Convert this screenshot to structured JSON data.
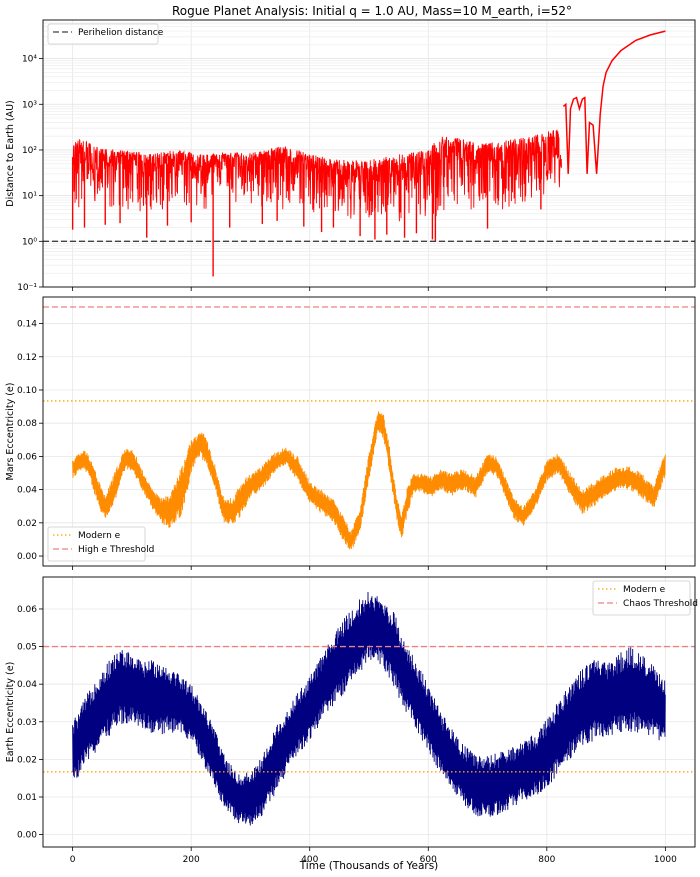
{
  "figure": {
    "title": "Rogue Planet Analysis: Initial q = 1.0 AU, Mass=10 M_earth, i=52°",
    "xlabel": "Time (Thousands of Years)"
  },
  "chart_data": [
    {
      "type": "line",
      "id": "distance",
      "ylabel": "Distance to Earth (AU)",
      "yscale": "log",
      "ylim": [
        0.1,
        70000
      ],
      "xlim": [
        -50,
        1050
      ],
      "xticks": [
        0,
        200,
        400,
        600,
        800,
        1000
      ],
      "yticks": [
        0.1,
        1,
        10,
        100,
        1000,
        10000
      ],
      "ytick_labels": [
        "10⁻¹",
        "10⁰",
        "10¹",
        "10²",
        "10³",
        "10⁴"
      ],
      "grid": true,
      "legend_position": "upper-left",
      "series": [
        {
          "kind": "band",
          "color": "#ff0000",
          "x": [
            0,
            25,
            50,
            75,
            100,
            125,
            150,
            175,
            200,
            225,
            250,
            275,
            300,
            325,
            350,
            375,
            400,
            425,
            450,
            475,
            500,
            525,
            550,
            575,
            600,
            625,
            650,
            675,
            700,
            725,
            750,
            775,
            800,
            825
          ],
          "low": [
            5,
            6,
            6,
            5,
            5,
            4,
            5,
            5,
            6,
            5,
            6,
            5,
            5,
            6,
            5,
            5,
            4,
            4,
            3,
            3,
            3,
            3,
            2.5,
            3,
            3,
            4,
            5,
            5,
            5,
            5,
            6,
            7,
            10,
            12
          ],
          "high": [
            180,
            150,
            110,
            100,
            95,
            80,
            90,
            100,
            90,
            80,
            90,
            90,
            85,
            100,
            120,
            110,
            80,
            70,
            65,
            60,
            60,
            70,
            80,
            90,
            110,
            200,
            190,
            150,
            140,
            160,
            180,
            200,
            250,
            300
          ],
          "mid": [
            70,
            60,
            55,
            50,
            50,
            45,
            50,
            50,
            45,
            40,
            45,
            45,
            45,
            50,
            55,
            55,
            45,
            35,
            30,
            28,
            28,
            30,
            35,
            40,
            45,
            70,
            75,
            65,
            60,
            65,
            70,
            80,
            100,
            120
          ]
        },
        {
          "kind": "spikes",
          "color": "#ff0000",
          "x": [
            0,
            20,
            55,
            80,
            125,
            160,
            200,
            237,
            265,
            320,
            345,
            390,
            420,
            440,
            485,
            510,
            530,
            560,
            580,
            607,
            612,
            700,
            790
          ],
          "y": [
            1.8,
            2.0,
            2.3,
            2.5,
            1.2,
            2.2,
            2.6,
            0.17,
            2.0,
            2.4,
            2.8,
            2.1,
            1.6,
            2.0,
            1.3,
            1.1,
            1.4,
            1.2,
            1.5,
            1.1,
            1.0,
            1.9,
            5
          ]
        },
        {
          "kind": "escape",
          "color": "#ff0000",
          "x": [
            828,
            832,
            836,
            840,
            845,
            850,
            855,
            860,
            864,
            868,
            872,
            878,
            884,
            889,
            890,
            895,
            900,
            910,
            925,
            950,
            975,
            1000
          ],
          "y": [
            900,
            1000,
            30,
            800,
            1300,
            1400,
            800,
            1300,
            1400,
            30,
            400,
            350,
            30,
            350,
            600,
            2500,
            5000,
            9000,
            15000,
            25000,
            33000,
            40000
          ]
        },
        {
          "kind": "hline",
          "name": "Perihelion distance",
          "color": "#404040",
          "dash": "dashed",
          "y": 1.0
        }
      ]
    },
    {
      "type": "line",
      "id": "mars",
      "ylabel": "Mars Eccentricity (e)",
      "ylim": [
        -0.006,
        0.156
      ],
      "xlim": [
        -50,
        1050
      ],
      "xticks": [
        0,
        200,
        400,
        600,
        800,
        1000
      ],
      "yticks": [
        0.0,
        0.02,
        0.04,
        0.06,
        0.08,
        0.1,
        0.12,
        0.14
      ],
      "ytick_labels": [
        "0.00",
        "0.02",
        "0.04",
        "0.06",
        "0.08",
        "0.10",
        "0.12",
        "0.14"
      ],
      "grid": true,
      "legend_position": "lower-left",
      "series": [
        {
          "kind": "band",
          "color": "#ff8c00",
          "x": [
            0,
            10,
            20,
            30,
            45,
            55,
            70,
            85,
            95,
            105,
            120,
            135,
            150,
            165,
            185,
            200,
            215,
            225,
            240,
            255,
            270,
            285,
            300,
            320,
            340,
            360,
            380,
            400,
            420,
            440,
            455,
            470,
            485,
            500,
            515,
            525,
            535,
            545,
            555,
            565,
            575,
            590,
            605,
            620,
            640,
            660,
            680,
            700,
            715,
            730,
            745,
            760,
            780,
            800,
            820,
            840,
            860,
            880,
            900,
            920,
            940,
            960,
            980,
            1000
          ],
          "low": [
            0.047,
            0.05,
            0.052,
            0.045,
            0.028,
            0.022,
            0.03,
            0.05,
            0.052,
            0.048,
            0.038,
            0.028,
            0.02,
            0.016,
            0.025,
            0.05,
            0.06,
            0.055,
            0.04,
            0.02,
            0.018,
            0.025,
            0.035,
            0.04,
            0.05,
            0.055,
            0.045,
            0.032,
            0.025,
            0.02,
            0.01,
            0.002,
            0.015,
            0.045,
            0.075,
            0.07,
            0.05,
            0.025,
            0.01,
            0.025,
            0.038,
            0.038,
            0.035,
            0.04,
            0.036,
            0.04,
            0.035,
            0.05,
            0.048,
            0.035,
            0.022,
            0.018,
            0.028,
            0.045,
            0.05,
            0.035,
            0.025,
            0.03,
            0.036,
            0.04,
            0.04,
            0.035,
            0.028,
            0.048
          ],
          "high": [
            0.058,
            0.062,
            0.064,
            0.06,
            0.045,
            0.036,
            0.05,
            0.063,
            0.066,
            0.062,
            0.05,
            0.04,
            0.035,
            0.038,
            0.055,
            0.07,
            0.076,
            0.072,
            0.055,
            0.035,
            0.035,
            0.045,
            0.05,
            0.055,
            0.062,
            0.066,
            0.06,
            0.045,
            0.04,
            0.035,
            0.025,
            0.015,
            0.03,
            0.062,
            0.088,
            0.085,
            0.065,
            0.04,
            0.025,
            0.042,
            0.05,
            0.05,
            0.048,
            0.052,
            0.05,
            0.053,
            0.048,
            0.062,
            0.06,
            0.048,
            0.035,
            0.03,
            0.04,
            0.058,
            0.062,
            0.05,
            0.04,
            0.045,
            0.05,
            0.054,
            0.054,
            0.05,
            0.042,
            0.064
          ]
        },
        {
          "kind": "hline",
          "name": "Modern e",
          "color": "#ffa500",
          "dash": "dotted",
          "y": 0.0934
        },
        {
          "kind": "hline",
          "name": "High e Threshold",
          "color": "#f08080",
          "dash": "dashed",
          "y": 0.15
        }
      ]
    },
    {
      "type": "line",
      "id": "earth",
      "ylabel": "Earth Eccentricity (e)",
      "ylim": [
        -0.0033,
        0.0685
      ],
      "xlim": [
        -50,
        1050
      ],
      "xticks": [
        0,
        200,
        400,
        600,
        800,
        1000
      ],
      "xtick_labels": [
        "0",
        "200",
        "400",
        "600",
        "800",
        "1000"
      ],
      "yticks": [
        0.0,
        0.01,
        0.02,
        0.03,
        0.04,
        0.05,
        0.06
      ],
      "ytick_labels": [
        "0.00",
        "0.01",
        "0.02",
        "0.03",
        "0.04",
        "0.05",
        "0.06"
      ],
      "grid": true,
      "legend_position": "upper-right",
      "series": [
        {
          "kind": "band",
          "color": "#000080",
          "x": [
            0,
            20,
            40,
            60,
            80,
            100,
            120,
            140,
            160,
            180,
            200,
            220,
            240,
            260,
            280,
            300,
            320,
            340,
            360,
            380,
            400,
            420,
            440,
            460,
            480,
            500,
            520,
            540,
            560,
            580,
            600,
            620,
            640,
            660,
            680,
            700,
            720,
            740,
            760,
            780,
            800,
            820,
            840,
            860,
            880,
            900,
            920,
            940,
            960,
            980,
            1000
          ],
          "low": [
            0.013,
            0.018,
            0.022,
            0.026,
            0.029,
            0.03,
            0.028,
            0.026,
            0.027,
            0.027,
            0.024,
            0.019,
            0.012,
            0.006,
            0.003,
            0.002,
            0.005,
            0.01,
            0.016,
            0.021,
            0.025,
            0.03,
            0.034,
            0.038,
            0.042,
            0.046,
            0.045,
            0.04,
            0.033,
            0.028,
            0.022,
            0.016,
            0.012,
            0.008,
            0.005,
            0.004,
            0.005,
            0.007,
            0.009,
            0.01,
            0.012,
            0.016,
            0.02,
            0.023,
            0.025,
            0.026,
            0.027,
            0.027,
            0.027,
            0.026,
            0.024
          ],
          "high": [
            0.03,
            0.036,
            0.042,
            0.046,
            0.05,
            0.048,
            0.046,
            0.047,
            0.045,
            0.043,
            0.04,
            0.035,
            0.028,
            0.02,
            0.016,
            0.017,
            0.021,
            0.028,
            0.033,
            0.038,
            0.042,
            0.048,
            0.053,
            0.058,
            0.062,
            0.065,
            0.063,
            0.06,
            0.052,
            0.046,
            0.04,
            0.033,
            0.028,
            0.024,
            0.021,
            0.021,
            0.022,
            0.023,
            0.025,
            0.027,
            0.031,
            0.036,
            0.041,
            0.044,
            0.047,
            0.046,
            0.048,
            0.05,
            0.048,
            0.045,
            0.041
          ]
        },
        {
          "kind": "hline",
          "name": "Modern e",
          "color": "#ffa500",
          "dash": "dotted",
          "y": 0.0167
        },
        {
          "kind": "hline",
          "name": "Chaos Threshold",
          "color": "#f08080",
          "dash": "dashed",
          "y": 0.05
        }
      ]
    }
  ]
}
